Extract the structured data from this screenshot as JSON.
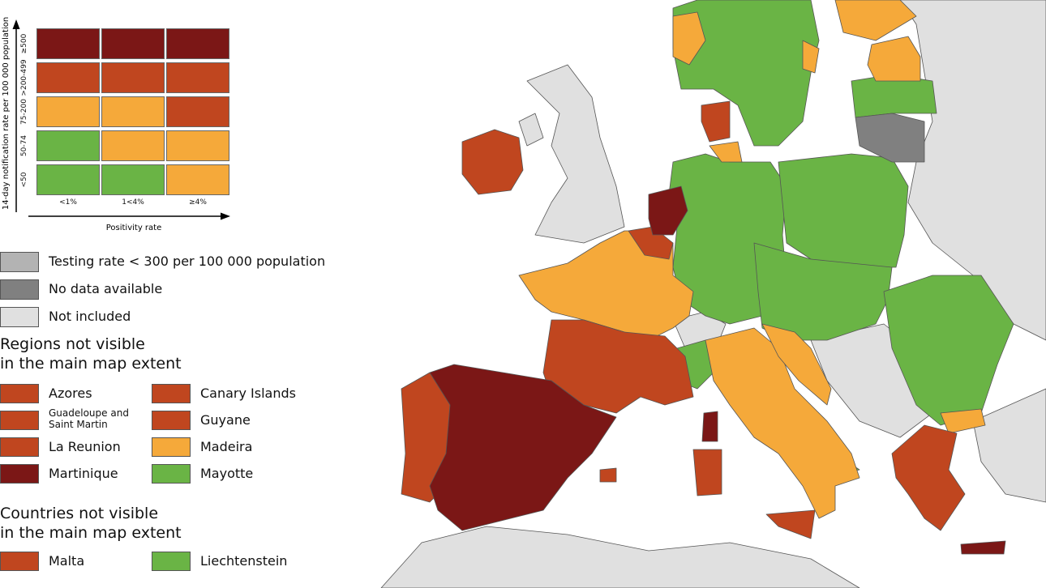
{
  "legend": {
    "matrix": {
      "y_axis_label": "14-day notification rate per 100 000 population",
      "x_axis_label": "Positivity rate",
      "rows": [
        "≥500",
        ">200-499",
        "75-200",
        "50-74",
        "<50"
      ],
      "columns": [
        "<1%",
        "1<4%",
        "≥4%"
      ],
      "cells": [
        [
          "#7b1716",
          "#7b1716",
          "#7b1716"
        ],
        [
          "#c0461f",
          "#c0461f",
          "#c0461f"
        ],
        [
          "#f5a93a",
          "#f5a93a",
          "#c0461f"
        ],
        [
          "#6ab445",
          "#f5a93a",
          "#f5a93a"
        ],
        [
          "#6ab445",
          "#6ab445",
          "#f5a93a"
        ]
      ]
    },
    "items": [
      {
        "label": "Testing rate < 300 per 100 000 population",
        "color": "#b3b3b3"
      },
      {
        "label": "No data available",
        "color": "#808080"
      },
      {
        "label": "Not included",
        "color": "#e0e0e0"
      }
    ],
    "regions": {
      "title": [
        "Regions not visible",
        "in the main map extent"
      ],
      "items": [
        {
          "label": "Azores",
          "color": "#c0461f"
        },
        {
          "label": "Canary Islands",
          "color": "#c0461f"
        },
        {
          "label": "Guadeloupe and Saint Martin",
          "color": "#c0461f"
        },
        {
          "label": "Guyane",
          "color": "#c0461f"
        },
        {
          "label": "La Reunion",
          "color": "#c0461f"
        },
        {
          "label": "Madeira",
          "color": "#f5a93a"
        },
        {
          "label": "Martinique",
          "color": "#7b1716"
        },
        {
          "label": "Mayotte",
          "color": "#6ab445"
        }
      ]
    },
    "countries": {
      "title": [
        "Countries not visible",
        "in the main map extent"
      ],
      "items": [
        {
          "label": "Malta",
          "color": "#c0461f"
        },
        {
          "label": "Liechtenstein",
          "color": "#6ab445"
        }
      ]
    }
  }
}
